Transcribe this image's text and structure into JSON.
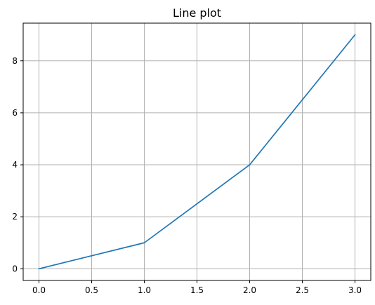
{
  "chart_data": {
    "type": "line",
    "title": "Line plot",
    "xlabel": "",
    "ylabel": "",
    "grid": true,
    "xlim": [
      -0.15,
      3.15
    ],
    "ylim": [
      -0.45,
      9.45
    ],
    "xticks": [
      0.0,
      0.5,
      1.0,
      1.5,
      2.0,
      2.5,
      3.0
    ],
    "xtick_labels": [
      "0.0",
      "0.5",
      "1.0",
      "1.5",
      "2.0",
      "2.5",
      "3.0"
    ],
    "yticks": [
      0,
      2,
      4,
      6,
      8
    ],
    "ytick_labels": [
      "0",
      "2",
      "4",
      "6",
      "8"
    ],
    "series": [
      {
        "x": [
          0,
          1,
          2,
          3
        ],
        "values": [
          0,
          1,
          4,
          9
        ],
        "color": "#1f77b4"
      }
    ],
    "colors": {
      "line": "#1f77b4",
      "grid": "#b0b0b0",
      "axes": "#000000",
      "background": "#ffffff"
    }
  }
}
